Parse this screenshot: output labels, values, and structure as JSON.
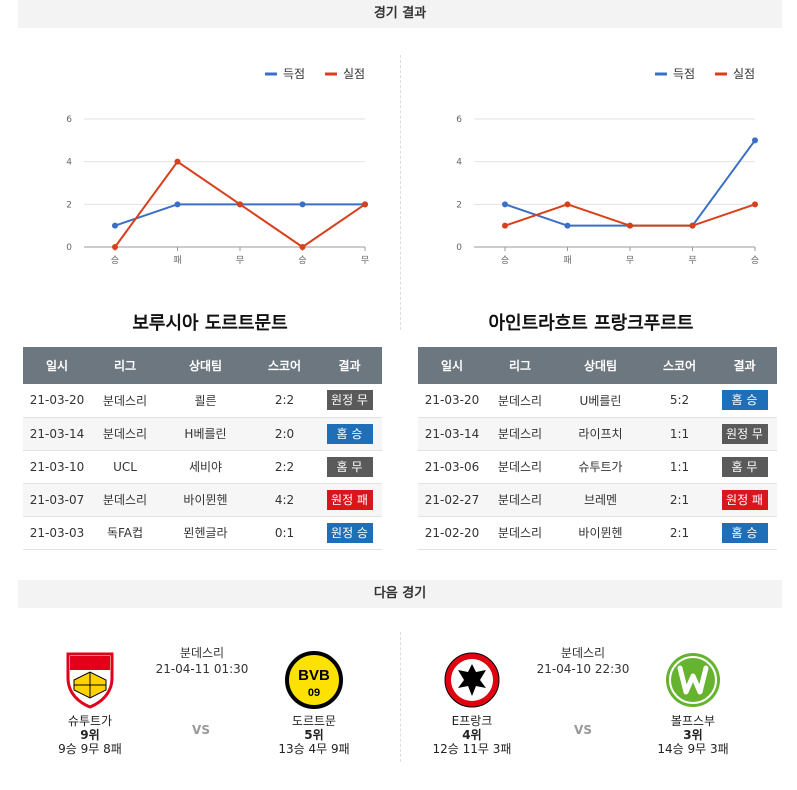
{
  "sections": {
    "results_title": "경기 결과",
    "next_title": "다음 경기"
  },
  "legend": {
    "scored": "득점",
    "conceded": "실점"
  },
  "colors": {
    "scored": "#3a6fc4",
    "conceded": "#d8401b",
    "header_bg": "#6d7780",
    "win": "#1f6fb8",
    "loss": "#d9161c",
    "draw": "#5a5a5a"
  },
  "chart_data": [
    {
      "type": "line",
      "categories": [
        "승",
        "패",
        "무",
        "승",
        "무"
      ],
      "ylim": [
        0,
        6
      ],
      "yticks": [
        "0",
        "2",
        "4",
        "6"
      ],
      "grid": true,
      "legend_position": "top-right",
      "series": [
        {
          "name": "득점",
          "values": [
            1,
            2,
            2,
            2,
            2
          ]
        },
        {
          "name": "실점",
          "values": [
            0,
            4,
            2,
            0,
            2
          ]
        }
      ]
    },
    {
      "type": "line",
      "categories": [
        "승",
        "패",
        "무",
        "무",
        "승"
      ],
      "ylim": [
        0,
        6
      ],
      "yticks": [
        "0",
        "2",
        "4",
        "6"
      ],
      "grid": true,
      "legend_position": "top-right",
      "series": [
        {
          "name": "득점",
          "values": [
            2,
            1,
            1,
            1,
            5
          ]
        },
        {
          "name": "실점",
          "values": [
            1,
            2,
            1,
            1,
            2
          ]
        }
      ]
    }
  ],
  "tables": [
    {
      "team": "보루시아 도르트문트",
      "headers": [
        "일시",
        "리그",
        "상대팀",
        "스코어",
        "결과"
      ],
      "rows": [
        {
          "date": "21-03-20",
          "league": "분데스리",
          "opponent": "쾰른",
          "score": "2:2",
          "result": "원정 무",
          "type": "draw"
        },
        {
          "date": "21-03-14",
          "league": "분데스리",
          "opponent": "H베를린",
          "score": "2:0",
          "result": "홈 승",
          "type": "win"
        },
        {
          "date": "21-03-10",
          "league": "UCL",
          "opponent": "세비야",
          "score": "2:2",
          "result": "홈 무",
          "type": "draw"
        },
        {
          "date": "21-03-07",
          "league": "분데스리",
          "opponent": "바이뮌헨",
          "score": "4:2",
          "result": "원정 패",
          "type": "loss"
        },
        {
          "date": "21-03-03",
          "league": "독FA컵",
          "opponent": "묀헨글라",
          "score": "0:1",
          "result": "원정 승",
          "type": "win"
        }
      ]
    },
    {
      "team": "아인트라흐트 프랑크푸르트",
      "headers": [
        "일시",
        "리그",
        "상대팀",
        "스코어",
        "결과"
      ],
      "rows": [
        {
          "date": "21-03-20",
          "league": "분데스리",
          "opponent": "U베를린",
          "score": "5:2",
          "result": "홈 승",
          "type": "win"
        },
        {
          "date": "21-03-14",
          "league": "분데스리",
          "opponent": "라이프치",
          "score": "1:1",
          "result": "원정 무",
          "type": "draw"
        },
        {
          "date": "21-03-06",
          "league": "분데스리",
          "opponent": "슈투트가",
          "score": "1:1",
          "result": "홈 무",
          "type": "draw"
        },
        {
          "date": "21-02-27",
          "league": "분데스리",
          "opponent": "브레멘",
          "score": "2:1",
          "result": "원정 패",
          "type": "loss"
        },
        {
          "date": "21-02-20",
          "league": "분데스리",
          "opponent": "바이뮌헨",
          "score": "2:1",
          "result": "홈 승",
          "type": "win"
        }
      ]
    }
  ],
  "next_matches": [
    {
      "league": "분데스리",
      "datetime": "21-04-11 01:30",
      "vs": "VS",
      "home": {
        "name": "슈투트가",
        "rank": "9위",
        "record": "9승 9무 8패",
        "logo": "vfb-stuttgart-logo"
      },
      "away": {
        "name": "도르트문",
        "rank": "5위",
        "record": "13승 4무 9패",
        "logo": "bvb-logo",
        "logo_text": "BVB",
        "logo_num": "09"
      }
    },
    {
      "league": "분데스리",
      "datetime": "21-04-10 22:30",
      "vs": "VS",
      "home": {
        "name": "E프랑크",
        "rank": "4위",
        "record": "12승 11무 3패",
        "logo": "eintracht-frankfurt-logo"
      },
      "away": {
        "name": "볼프스부",
        "rank": "3위",
        "record": "14승 9무 3패",
        "logo": "vfl-wolfsburg-logo"
      }
    }
  ]
}
